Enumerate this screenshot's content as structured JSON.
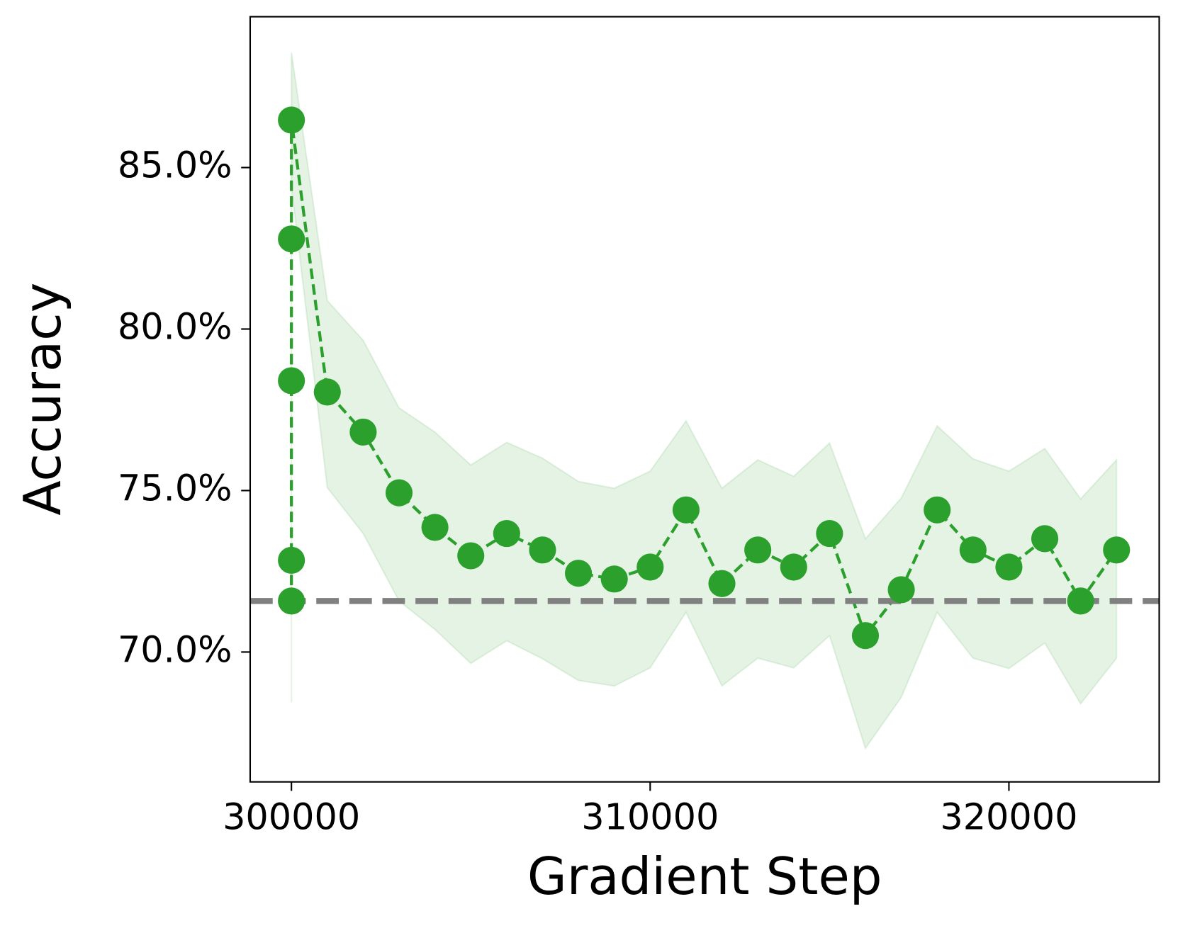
{
  "chart_data": {
    "type": "line",
    "xlabel": "Gradient Step",
    "ylabel": "Accuracy",
    "x": [
      300000,
      300000,
      300000,
      300000,
      300000,
      301000,
      302000,
      303000,
      304000,
      305000,
      306000,
      307000,
      308000,
      309000,
      310000,
      311000,
      312000,
      313000,
      314000,
      315000,
      316000,
      317000,
      318000,
      319000,
      320000,
      321000,
      322000,
      323000
    ],
    "series": [
      {
        "color": "#2ca02c",
        "band_opacity": 0.12,
        "values": [
          71.58,
          72.84,
          78.4,
          82.79,
          86.47,
          78.05,
          76.81,
          74.93,
          73.86,
          72.98,
          73.67,
          73.16,
          72.44,
          72.26,
          72.63,
          74.4,
          72.12,
          73.16,
          72.63,
          73.67,
          70.51,
          71.93,
          74.4,
          73.16,
          72.63,
          73.51,
          71.58,
          73.16
        ],
        "upper": [
          74.7,
          75.7,
          81.3,
          86.1,
          88.56,
          80.88,
          79.65,
          77.56,
          76.81,
          75.79,
          76.49,
          76.0,
          75.28,
          75.07,
          75.6,
          77.16,
          75.07,
          75.95,
          75.44,
          76.47,
          73.51,
          74.77,
          77.0,
          75.98,
          75.6,
          76.3,
          74.74,
          75.95
        ],
        "lower": [
          68.44,
          70.0,
          75.5,
          79.5,
          84.4,
          75.09,
          73.67,
          71.58,
          70.7,
          69.65,
          70.35,
          69.79,
          69.12,
          68.95,
          69.51,
          71.23,
          68.95,
          69.81,
          69.51,
          70.51,
          67.02,
          68.6,
          71.23,
          69.81,
          69.49,
          70.28,
          68.4,
          69.81
        ]
      }
    ],
    "hline": 71.58,
    "hline_color": "#808080",
    "xlim": [
      298850,
      324190
    ],
    "ylim": [
      65.98,
      89.67
    ],
    "xticks": [
      300000,
      310000,
      320000
    ],
    "yticks": [
      {
        "value": 70,
        "label": "70.0%"
      },
      {
        "value": 75,
        "label": "75.0%"
      },
      {
        "value": 80,
        "label": "80.0%"
      },
      {
        "value": 85,
        "label": "85.0%"
      }
    ]
  }
}
